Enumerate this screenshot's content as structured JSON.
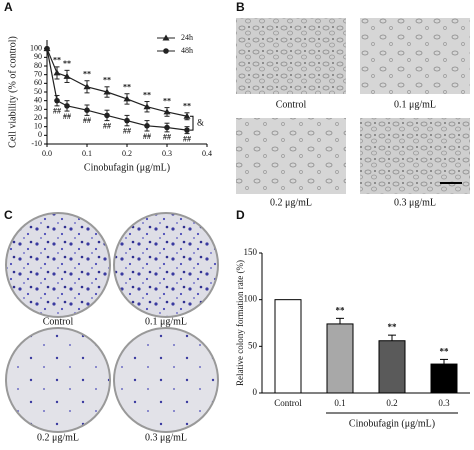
{
  "panels": {
    "labels": [
      "A",
      "B",
      "C",
      "D"
    ],
    "micrographs": [
      "Control",
      "0.1 μg/mL",
      "0.2 μg/mL",
      "0.3 μg/mL"
    ],
    "colonies": [
      "Control",
      "0.1 μg/mL",
      "0.2 μg/mL",
      "0.3 μg/mL"
    ]
  },
  "chart_data": [
    {
      "type": "line",
      "y_label": "Cell viability (% of control)",
      "x_label": "Cinobufagin (μg/mL)",
      "x": [
        0,
        0.025,
        0.05,
        0.1,
        0.15,
        0.2,
        0.25,
        0.3,
        0.35
      ],
      "series": [
        {
          "name": "24h",
          "color": "#222222",
          "marker": "triangle",
          "significance_position": "above",
          "values": [
            100,
            72,
            68,
            56,
            50,
            42,
            33,
            27,
            22
          ],
          "errors": [
            0,
            7,
            7,
            7,
            6,
            6,
            6,
            5,
            4
          ],
          "significance": [
            null,
            "**",
            "**",
            "**",
            "**",
            "**",
            "**",
            "**",
            "**"
          ]
        },
        {
          "name": "48h",
          "color": "#222222",
          "marker": "circle",
          "significance_position": "below",
          "values": [
            100,
            40,
            34,
            29,
            23,
            17,
            11,
            9,
            6
          ],
          "errors": [
            0,
            6,
            6,
            6,
            6,
            6,
            6,
            5,
            4
          ],
          "significance": [
            null,
            "##",
            "##",
            "##",
            "##",
            "##",
            "##",
            "##",
            "##"
          ]
        }
      ],
      "annotation": "&",
      "xlim": [
        0,
        0.4
      ],
      "xticks": [
        {
          "value": 0,
          "label": "0.0"
        },
        0.1,
        0.2,
        0.3,
        0.4
      ],
      "ylim": [
        -10,
        110
      ],
      "yticks": [
        -10,
        0,
        10,
        20,
        30,
        40,
        50,
        60,
        70,
        80,
        90,
        100
      ],
      "legend": "top-right"
    },
    {
      "type": "bar",
      "y_label": "Relative colony formation rate (%)",
      "x_label": "Cinobufagin (μg/mL)",
      "categories": [
        "Control",
        "0.1",
        "0.2",
        "0.3"
      ],
      "values": [
        100,
        74,
        56,
        31
      ],
      "errors": [
        0,
        6,
        6,
        5
      ],
      "colors": [
        "#ffffff",
        "#a8a8a8",
        "#5a5a5a",
        "#000000"
      ],
      "significance": [
        null,
        "**",
        "**",
        "**"
      ],
      "ylim": [
        0,
        150
      ],
      "yticks": [
        0,
        50,
        100,
        150
      ]
    }
  ]
}
